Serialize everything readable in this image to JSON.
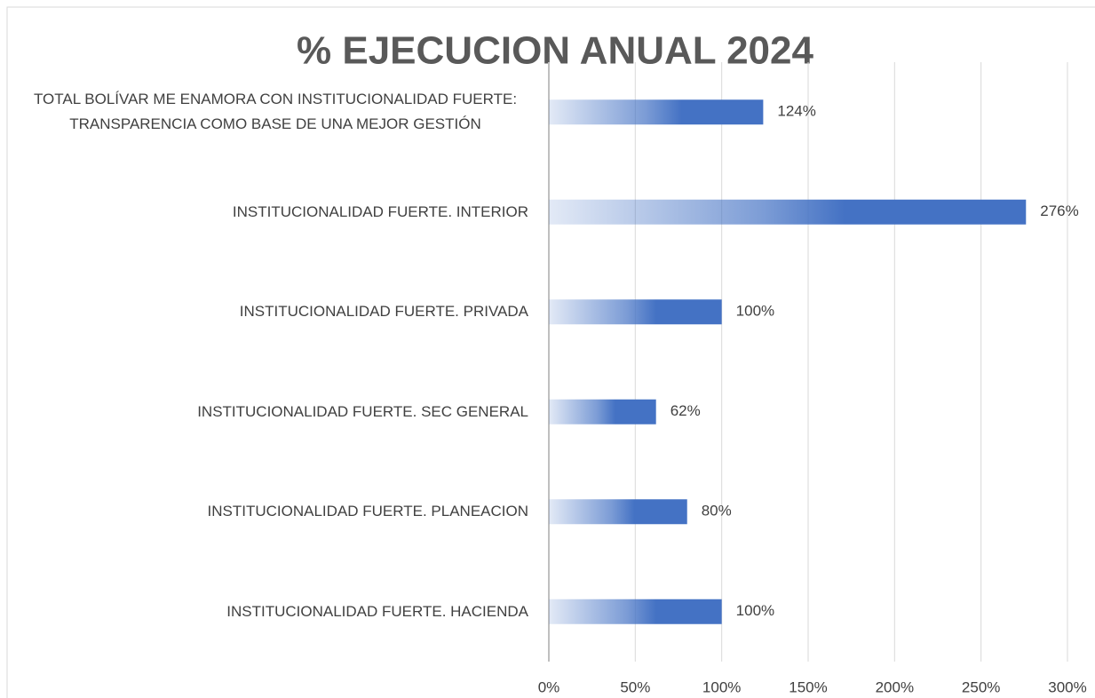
{
  "chart_data": {
    "type": "bar",
    "orientation": "horizontal",
    "title": "% EJECUCION ANUAL 2024",
    "categories": [
      "TOTAL BOLÍVAR ME ENAMORA CON INSTITUCIONALIDAD FUERTE: TRANSPARENCIA COMO BASE DE UNA MEJOR GESTIÓN",
      "INSTITUCIONALIDAD FUERTE. INTERIOR",
      "INSTITUCIONALIDAD FUERTE. PRIVADA",
      "INSTITUCIONALIDAD FUERTE. SEC GENERAL",
      "INSTITUCIONALIDAD FUERTE. PLANEACION",
      "INSTITUCIONALIDAD FUERTE. HACIENDA"
    ],
    "values": [
      124,
      276,
      100,
      62,
      80,
      100
    ],
    "value_labels": [
      "124%",
      "276%",
      "100%",
      "62%",
      "80%",
      "100%"
    ],
    "color": "#4472c4",
    "xlim": [
      0,
      300
    ],
    "xticks": [
      {
        "value": 0,
        "label": "0%"
      },
      {
        "value": 50,
        "label": "50%"
      },
      {
        "value": 100,
        "label": "100%"
      },
      {
        "value": 150,
        "label": "150%"
      },
      {
        "value": 200,
        "label": "200%"
      },
      {
        "value": 250,
        "label": "250%"
      },
      {
        "value": 300,
        "label": "300%"
      }
    ],
    "grid": true
  }
}
